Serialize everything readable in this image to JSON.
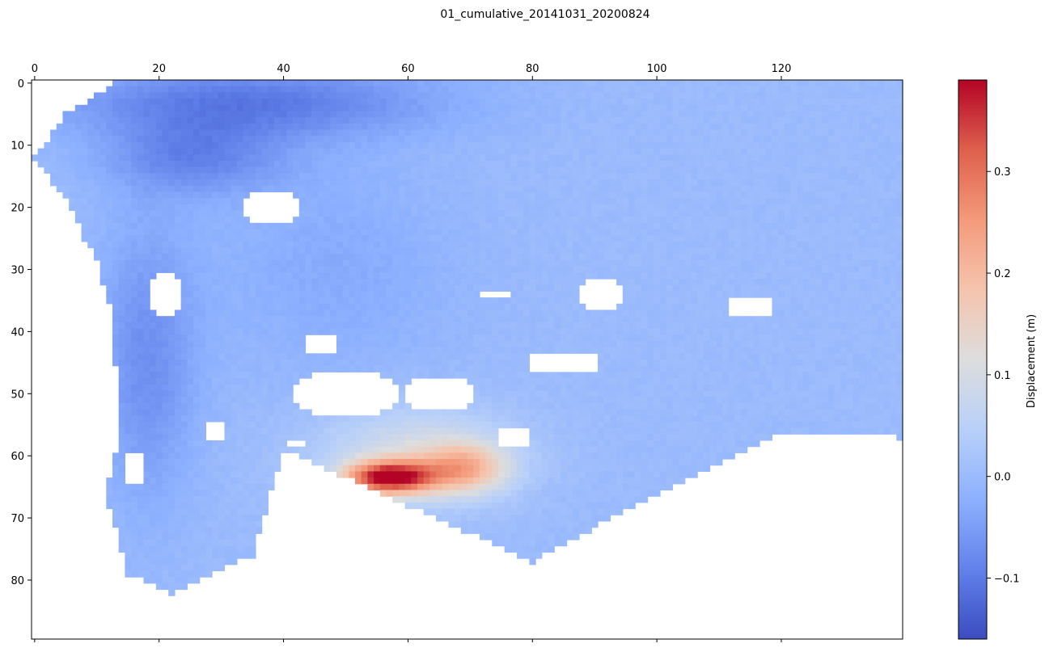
{
  "chart_data": {
    "type": "heatmap",
    "title": "01_cumulative_20141031_20200824",
    "x_axis": {
      "position": "top",
      "range": [
        -0.5,
        139.5
      ],
      "ticks": [
        0,
        20,
        40,
        60,
        80,
        100,
        120
      ]
    },
    "y_axis": {
      "inverted": true,
      "range": [
        -0.5,
        89.5
      ],
      "ticks": [
        0,
        10,
        20,
        30,
        40,
        50,
        60,
        70,
        80
      ]
    },
    "grid_size": {
      "cols": 140,
      "rows": 90
    },
    "colormap": "coolwarm",
    "colorbar": {
      "label": "Displacement (m)",
      "range": [
        -0.16,
        0.39
      ],
      "ticks": [
        -0.1,
        0.0,
        0.1,
        0.2,
        0.3
      ],
      "tick_labels": [
        "−0.1",
        "0.0",
        "0.1",
        "0.2",
        "0.3"
      ]
    },
    "field": {
      "background_value": 0.0,
      "anomalies": [
        {
          "note": "uplift peak",
          "cx": 57,
          "cy": 63.5,
          "rx": 7,
          "ry": 2.6,
          "amp": 0.36
        },
        {
          "note": "uplift east lobe",
          "cx": 69,
          "cy": 62,
          "rx": 7,
          "ry": 4,
          "amp": 0.17
        },
        {
          "note": "uplift halo",
          "cx": 61,
          "cy": 60,
          "rx": 16,
          "ry": 8,
          "amp": 0.1
        },
        {
          "note": "subsidence north",
          "cx": 34,
          "cy": 3,
          "rx": 30,
          "ry": 6,
          "amp": -0.1
        },
        {
          "note": "subsidence NW",
          "cx": 26,
          "cy": 12,
          "rx": 14,
          "ry": 6,
          "amp": -0.08
        },
        {
          "note": "subsidence west",
          "cx": 18,
          "cy": 45,
          "rx": 8,
          "ry": 22,
          "amp": -0.07
        },
        {
          "note": "subsidence center",
          "cx": 48,
          "cy": 30,
          "rx": 20,
          "ry": 18,
          "amp": -0.03
        }
      ],
      "valid_region": {
        "bottom_edge_by_col": [
          [
            0,
            13
          ],
          [
            10,
            28
          ],
          [
            12,
            68
          ],
          [
            15,
            79
          ],
          [
            22,
            82
          ],
          [
            35,
            76
          ],
          [
            40,
            59
          ],
          [
            80,
            77
          ],
          [
            100,
            66
          ],
          [
            120,
            56
          ],
          [
            139,
            57
          ]
        ],
        "left_edge_by_row": [
          [
            0,
            13
          ],
          [
            5,
            5
          ],
          [
            12,
            0
          ],
          [
            20,
            6
          ],
          [
            35,
            12
          ],
          [
            55,
            14
          ],
          [
            68,
            11
          ],
          [
            82,
            11
          ]
        ],
        "top_edge_by_col": [
          [
            0,
            5
          ],
          [
            10,
            1
          ],
          [
            13,
            0
          ],
          [
            139,
            0
          ]
        ]
      },
      "gaps": [
        {
          "cx": 50,
          "cy": 50,
          "rx": 9,
          "ry": 4
        },
        {
          "cx": 65,
          "cy": 50,
          "rx": 6,
          "ry": 3
        },
        {
          "cx": 38,
          "cy": 20,
          "rx": 5,
          "ry": 3
        },
        {
          "cx": 91,
          "cy": 34,
          "rx": 4,
          "ry": 3
        },
        {
          "cx": 115,
          "cy": 36,
          "rx": 4,
          "ry": 2
        },
        {
          "cx": 77,
          "cy": 57,
          "rx": 3,
          "ry": 2
        },
        {
          "cx": 21,
          "cy": 34,
          "rx": 3,
          "ry": 4
        },
        {
          "cx": 46,
          "cy": 42,
          "rx": 3,
          "ry": 2
        },
        {
          "cx": 85,
          "cy": 45,
          "rx": 6,
          "ry": 2
        },
        {
          "cx": 16,
          "cy": 62,
          "rx": 2,
          "ry": 3
        },
        {
          "cx": 74,
          "cy": 34,
          "rx": 3,
          "ry": 1
        },
        {
          "cx": 42,
          "cy": 58,
          "rx": 2,
          "ry": 1
        },
        {
          "cx": 29,
          "cy": 56,
          "rx": 2,
          "ry": 2
        }
      ]
    }
  }
}
